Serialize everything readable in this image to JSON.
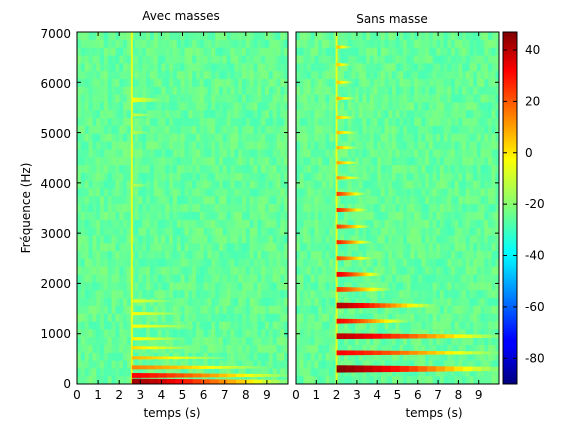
{
  "chart_data": {
    "type": "heatmap",
    "ylabel": "Fréquence (Hz)",
    "y_ticks": [
      "0",
      "1000",
      "2000",
      "3000",
      "4000",
      "5000",
      "6000",
      "7000"
    ],
    "x_ticks": [
      "0",
      "1",
      "2",
      "3",
      "4",
      "5",
      "6",
      "7",
      "8",
      "9"
    ],
    "xlim": [
      0,
      10
    ],
    "ylim": [
      0,
      7000
    ],
    "colormap": "jet",
    "colorbar": {
      "ticks": [
        "40",
        "20",
        "0",
        "-20",
        "-40",
        "-60",
        "-80"
      ],
      "tick_values": [
        40,
        20,
        0,
        -20,
        -40,
        -60,
        -80
      ],
      "range": [
        -90,
        47
      ]
    },
    "panels": [
      {
        "title": "Avec masses",
        "xlabel": "temps (s)",
        "onset_s": 2.6,
        "background_db": -25,
        "bands": [
          {
            "f": 50,
            "db": 42,
            "decay_end_s": 10.0,
            "width_hz": 70
          },
          {
            "f": 170,
            "db": 30,
            "decay_end_s": 10.0,
            "width_hz": 60
          },
          {
            "f": 330,
            "db": 12,
            "decay_end_s": 9.0,
            "width_hz": 50
          },
          {
            "f": 520,
            "db": 5,
            "decay_end_s": 7.0,
            "width_hz": 40
          },
          {
            "f": 720,
            "db": 0,
            "decay_end_s": 5.5,
            "width_hz": 40
          },
          {
            "f": 900,
            "db": -3,
            "decay_end_s": 5.0,
            "width_hz": 40
          },
          {
            "f": 1150,
            "db": -5,
            "decay_end_s": 5.5,
            "width_hz": 40
          },
          {
            "f": 1400,
            "db": -6,
            "decay_end_s": 5.0,
            "width_hz": 40
          },
          {
            "f": 1650,
            "db": -8,
            "decay_end_s": 4.5,
            "width_hz": 40
          },
          {
            "f": 5650,
            "db": -6,
            "decay_end_s": 4.0,
            "width_hz": 60
          },
          {
            "f": 5350,
            "db": -12,
            "decay_end_s": 3.6,
            "width_hz": 40
          },
          {
            "f": 5000,
            "db": -14,
            "decay_end_s": 3.4,
            "width_hz": 40
          },
          {
            "f": 3950,
            "db": -14,
            "decay_end_s": 3.3,
            "width_hz": 40
          }
        ]
      },
      {
        "title": "Sans masse",
        "xlabel": "temps (s)",
        "onset_s": 2.0,
        "background_db": -25,
        "bands": [
          {
            "f": 300,
            "db": 45,
            "decay_end_s": 10.0,
            "width_hz": 90
          },
          {
            "f": 620,
            "db": 30,
            "decay_end_s": 10.0,
            "width_hz": 60
          },
          {
            "f": 950,
            "db": 38,
            "decay_end_s": 10.0,
            "width_hz": 70
          },
          {
            "f": 1250,
            "db": 30,
            "decay_end_s": 5.5,
            "width_hz": 60
          },
          {
            "f": 1560,
            "db": 40,
            "decay_end_s": 6.8,
            "width_hz": 70
          },
          {
            "f": 1880,
            "db": 22,
            "decay_end_s": 4.6,
            "width_hz": 60
          },
          {
            "f": 2180,
            "db": 32,
            "decay_end_s": 4.2,
            "width_hz": 60
          },
          {
            "f": 2500,
            "db": 20,
            "decay_end_s": 3.8,
            "width_hz": 50
          },
          {
            "f": 2820,
            "db": 25,
            "decay_end_s": 3.7,
            "width_hz": 50
          },
          {
            "f": 3130,
            "db": 22,
            "decay_end_s": 3.6,
            "width_hz": 50
          },
          {
            "f": 3460,
            "db": 25,
            "decay_end_s": 3.5,
            "width_hz": 50
          },
          {
            "f": 3780,
            "db": 22,
            "decay_end_s": 3.4,
            "width_hz": 50
          },
          {
            "f": 4100,
            "db": 10,
            "decay_end_s": 3.2,
            "width_hz": 40
          },
          {
            "f": 4400,
            "db": 8,
            "decay_end_s": 3.1,
            "width_hz": 40
          },
          {
            "f": 4700,
            "db": 6,
            "decay_end_s": 3.0,
            "width_hz": 40
          },
          {
            "f": 5000,
            "db": 5,
            "decay_end_s": 3.0,
            "width_hz": 40
          },
          {
            "f": 5300,
            "db": 4,
            "decay_end_s": 2.9,
            "width_hz": 40
          },
          {
            "f": 5680,
            "db": 6,
            "decay_end_s": 2.9,
            "width_hz": 40
          },
          {
            "f": 6000,
            "db": 3,
            "decay_end_s": 2.8,
            "width_hz": 40
          },
          {
            "f": 6350,
            "db": 3,
            "decay_end_s": 2.7,
            "width_hz": 40
          },
          {
            "f": 6700,
            "db": 4,
            "decay_end_s": 2.7,
            "width_hz": 40
          }
        ]
      }
    ]
  }
}
